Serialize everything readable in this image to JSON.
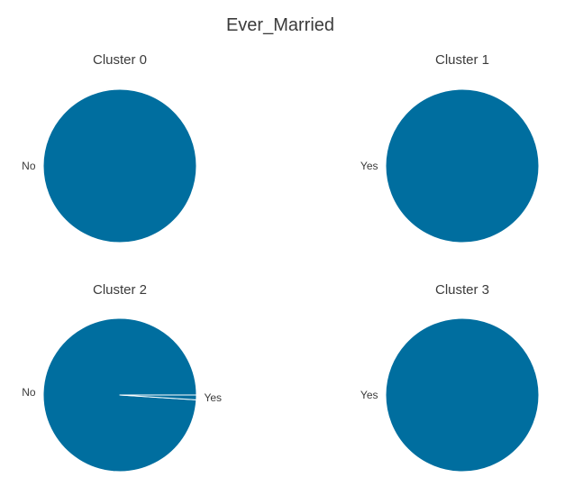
{
  "figure": {
    "title": "Ever_Married"
  },
  "colors": {
    "slice_fill": "#006e9f",
    "slice_edge": "#ffffff",
    "text": "#3b3b3b"
  },
  "chart_data": [
    {
      "type": "pie",
      "title": "Cluster 0",
      "labels": [
        "No"
      ],
      "values": [
        1.0
      ]
    },
    {
      "type": "pie",
      "title": "Cluster 1",
      "labels": [
        "Yes"
      ],
      "values": [
        1.0
      ]
    },
    {
      "type": "pie",
      "title": "Cluster 2",
      "labels": [
        "No",
        "Yes"
      ],
      "values": [
        0.99,
        0.01
      ]
    },
    {
      "type": "pie",
      "title": "Cluster 3",
      "labels": [
        "Yes"
      ],
      "values": [
        1.0
      ]
    }
  ]
}
